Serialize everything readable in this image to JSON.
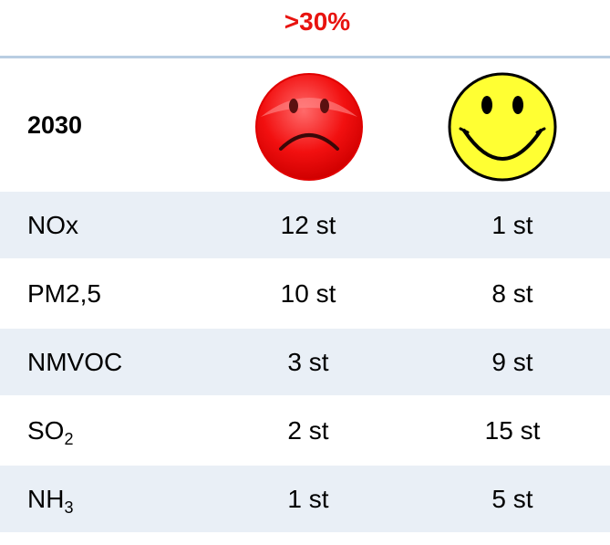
{
  "header": {
    "note": ">30%",
    "year": "2030"
  },
  "table": {
    "rows": [
      [
        "NOx",
        "12 st",
        "1 st"
      ],
      [
        "PM2,5",
        "10 st",
        "8 st"
      ],
      [
        "NMVOC",
        "3 st",
        "9 st"
      ],
      [
        {
          "text": "SO",
          "sub": "2"
        },
        "2 st",
        "15 st"
      ],
      [
        {
          "text": "NH",
          "sub": "3"
        },
        "1 st",
        "5 st"
      ]
    ]
  }
}
